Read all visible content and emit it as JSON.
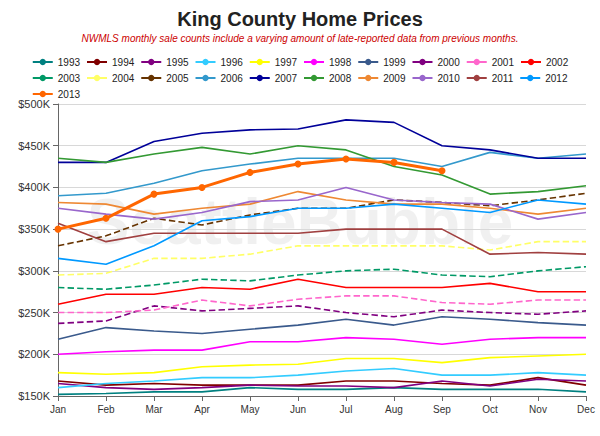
{
  "chart_data": {
    "type": "line",
    "title": "King County Home Prices",
    "subtitle": "NWMLS monthly sale counts include a varying amount of late-reported data from previous months.",
    "annotation": "SeattleBubble",
    "categories": [
      "Jan",
      "Feb",
      "Mar",
      "Apr",
      "May",
      "Jun",
      "Jul",
      "Aug",
      "Sep",
      "Oct",
      "Nov",
      "Dec"
    ],
    "ylim": [
      150000,
      500000
    ],
    "yticks": [
      {
        "value": 150000,
        "label": "$150K"
      },
      {
        "value": 200000,
        "label": "$200K"
      },
      {
        "value": 250000,
        "label": "$250K"
      },
      {
        "value": 300000,
        "label": "$300K"
      },
      {
        "value": 350000,
        "label": "$350K"
      },
      {
        "value": 400000,
        "label": "$400K"
      },
      {
        "value": 450000,
        "label": "$450K"
      },
      {
        "value": 500000,
        "label": "$500K"
      }
    ],
    "grid": true,
    "legend": "top",
    "series": [
      {
        "name": "1993",
        "color": "#008080",
        "line_style": "solid",
        "values": [
          152000,
          153000,
          155000,
          155000,
          160000,
          158000,
          158000,
          160000,
          158000,
          158000,
          158000,
          155000
        ]
      },
      {
        "name": "1994",
        "color": "#800000",
        "line_style": "solid",
        "values": [
          168000,
          163000,
          165000,
          163000,
          163000,
          163000,
          168000,
          168000,
          165000,
          163000,
          172000,
          163000
        ]
      },
      {
        "name": "1995",
        "color": "#800080",
        "line_style": "solid",
        "values": [
          165000,
          160000,
          158000,
          160000,
          163000,
          162000,
          162000,
          160000,
          168000,
          162000,
          170000,
          168000
        ]
      },
      {
        "name": "1996",
        "color": "#33ccff",
        "line_style": "solid",
        "values": [
          160000,
          165000,
          168000,
          172000,
          172000,
          175000,
          180000,
          183000,
          175000,
          175000,
          178000,
          175000
        ]
      },
      {
        "name": "1997",
        "color": "#ffff00",
        "line_style": "solid",
        "values": [
          178000,
          176000,
          178000,
          185000,
          187000,
          188000,
          195000,
          195000,
          190000,
          196000,
          198000,
          200000
        ]
      },
      {
        "name": "1998",
        "color": "#ff00ff",
        "line_style": "solid",
        "values": [
          200000,
          203000,
          205000,
          205000,
          215000,
          215000,
          220000,
          218000,
          212000,
          218000,
          220000,
          220000
        ]
      },
      {
        "name": "1999",
        "color": "#3a5a8c",
        "line_style": "solid",
        "values": [
          218000,
          232000,
          228000,
          225000,
          230000,
          235000,
          242000,
          235000,
          245000,
          242000,
          238000,
          235000
        ]
      },
      {
        "name": "2000",
        "color": "#800080",
        "line_style": "dashed",
        "values": [
          237000,
          240000,
          258000,
          252000,
          255000,
          258000,
          250000,
          245000,
          253000,
          250000,
          248000,
          252000
        ]
      },
      {
        "name": "2001",
        "color": "#ff66cc",
        "line_style": "dashed",
        "values": [
          250000,
          250000,
          253000,
          265000,
          258000,
          266000,
          270000,
          270000,
          262000,
          260000,
          265000,
          265000
        ]
      },
      {
        "name": "2002",
        "color": "#ff0000",
        "line_style": "solid",
        "values": [
          260000,
          272000,
          272000,
          280000,
          278000,
          290000,
          280000,
          280000,
          280000,
          285000,
          275000,
          275000
        ]
      },
      {
        "name": "2003",
        "color": "#009966",
        "line_style": "dashed",
        "values": [
          280000,
          278000,
          283000,
          290000,
          288000,
          295000,
          300000,
          302000,
          295000,
          293000,
          300000,
          305000
        ]
      },
      {
        "name": "2004",
        "color": "#ffff66",
        "line_style": "dashed",
        "values": [
          295000,
          297000,
          315000,
          315000,
          320000,
          330000,
          330000,
          330000,
          330000,
          325000,
          335000,
          335000
        ]
      },
      {
        "name": "2005",
        "color": "#663300",
        "line_style": "dashed",
        "values": [
          330000,
          342000,
          363000,
          355000,
          367000,
          375000,
          375000,
          385000,
          382000,
          378000,
          385000,
          393000
        ]
      },
      {
        "name": "2006",
        "color": "#3399cc",
        "line_style": "solid",
        "values": [
          390000,
          393000,
          405000,
          420000,
          428000,
          435000,
          435000,
          435000,
          425000,
          442000,
          435000,
          440000
        ]
      },
      {
        "name": "2007",
        "color": "#000099",
        "line_style": "solid",
        "values": [
          430000,
          430000,
          455000,
          465000,
          469000,
          470000,
          481000,
          478000,
          450000,
          445000,
          435000,
          435000
        ]
      },
      {
        "name": "2008",
        "color": "#339933",
        "line_style": "solid",
        "values": [
          435000,
          430000,
          440000,
          448000,
          440000,
          450000,
          445000,
          425000,
          415000,
          392000,
          395000,
          402000
        ]
      },
      {
        "name": "2009",
        "color": "#ee8833",
        "line_style": "solid",
        "values": [
          382000,
          380000,
          368000,
          375000,
          380000,
          395000,
          385000,
          380000,
          380000,
          375000,
          368000,
          375000
        ]
      },
      {
        "name": "2010",
        "color": "#9966cc",
        "line_style": "solid",
        "values": [
          375000,
          368000,
          362000,
          370000,
          383000,
          385000,
          400000,
          385000,
          382000,
          380000,
          362000,
          370000
        ]
      },
      {
        "name": "2011",
        "color": "#a04040",
        "line_style": "solid",
        "values": [
          357000,
          335000,
          345000,
          345000,
          345000,
          345000,
          350000,
          350000,
          350000,
          320000,
          322000,
          320000
        ]
      },
      {
        "name": "2012",
        "color": "#0099ff",
        "line_style": "solid",
        "values": [
          315000,
          308000,
          330000,
          360000,
          365000,
          375000,
          375000,
          380000,
          375000,
          370000,
          385000,
          380000
        ]
      },
      {
        "name": "2013",
        "color": "#ff6600",
        "line_style": "solid",
        "marker": "circle",
        "values": [
          350000,
          363000,
          392000,
          400000,
          418000,
          428000,
          434000,
          430000,
          420000,
          null,
          null,
          null
        ]
      }
    ]
  }
}
